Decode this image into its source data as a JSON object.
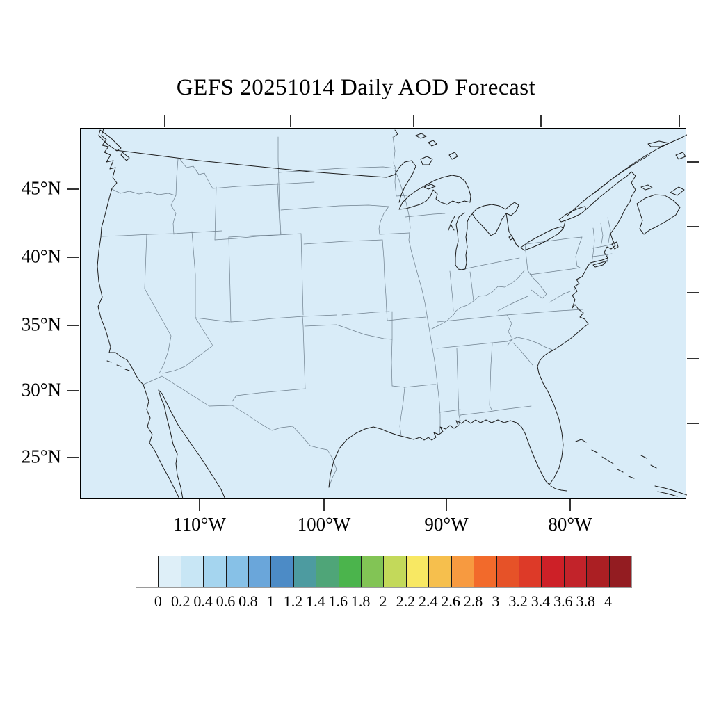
{
  "title": "GEFS 20251014 Daily AOD Forecast",
  "map": {
    "fill_color": "#d9ecf8",
    "y_axis_labels": [
      "45°N",
      "40°N",
      "35°N",
      "30°N",
      "25°N"
    ],
    "x_axis_labels": [
      "110°W",
      "100°W",
      "90°W",
      "80°W"
    ]
  },
  "colorbar": {
    "labels": [
      "0",
      "0.2",
      "0.4",
      "0.6",
      "0.8",
      "1",
      "1.2",
      "1.4",
      "1.6",
      "1.8",
      "2",
      "2.2",
      "2.4",
      "2.6",
      "2.8",
      "3",
      "3.2",
      "3.4",
      "3.6",
      "3.8",
      "4"
    ],
    "colors": [
      "#ffffff",
      "#deeff8",
      "#c8e6f5",
      "#a5d5ef",
      "#87c1e7",
      "#6aa6da",
      "#4c8bc6",
      "#4d9ba0",
      "#4fa578",
      "#4bb44c",
      "#82c455",
      "#c3d95a",
      "#f8e863",
      "#f6bf4d",
      "#f79a40",
      "#f26a2b",
      "#e65228",
      "#dd3a28",
      "#cd2027",
      "#c2232a",
      "#ab1f23",
      "#931c21"
    ]
  }
}
